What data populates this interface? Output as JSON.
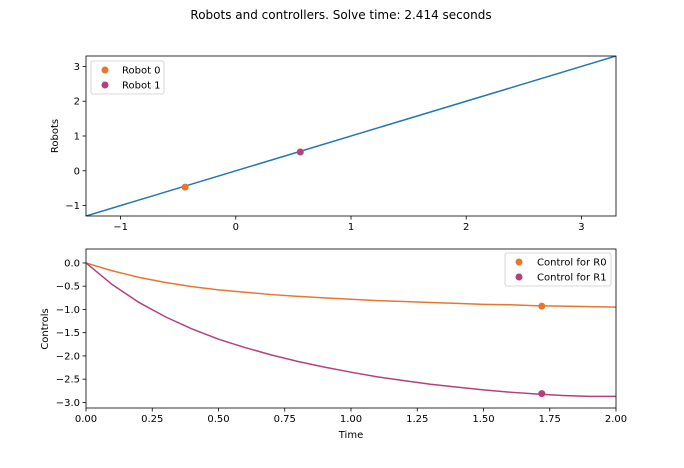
{
  "figure_title": "Robots and controllers. Solve time:  2.414 seconds",
  "colors": {
    "line_blue": "#1f77b4",
    "robot0": "#e8772e",
    "robot1": "#b5407f",
    "axes": "#000000",
    "legend_border": "#cccccc"
  },
  "chart_data": [
    {
      "id": "robots",
      "type": "scatter",
      "xlim": [
        -1.3,
        3.3
      ],
      "ylim": [
        -1.3,
        3.3
      ],
      "xticks": [
        -1,
        0,
        1,
        2,
        3
      ],
      "yticks": [
        -1,
        0,
        1,
        2,
        3
      ],
      "xtick_labels": [
        "−1",
        "0",
        "1",
        "2",
        "3"
      ],
      "ytick_labels": [
        "−1",
        "0",
        "1",
        "2",
        "3"
      ],
      "xlabel": "",
      "ylabel": "Robots",
      "grid": false,
      "legend_position": "top-left",
      "line": {
        "x": [
          -1.3,
          3.3
        ],
        "y": [
          -1.3,
          3.3
        ]
      },
      "series": [
        {
          "name": "Robot 0",
          "x": [
            -0.44
          ],
          "y": [
            -0.47
          ]
        },
        {
          "name": "Robot 1",
          "x": [
            0.56
          ],
          "y": [
            0.54
          ]
        }
      ]
    },
    {
      "id": "controls",
      "type": "line",
      "xlim": [
        0.0,
        2.0
      ],
      "ylim": [
        -3.12,
        0.3
      ],
      "xticks": [
        0.0,
        0.25,
        0.5,
        0.75,
        1.0,
        1.25,
        1.5,
        1.75,
        2.0
      ],
      "xtick_labels": [
        "0.00",
        "0.25",
        "0.50",
        "0.75",
        "1.00",
        "1.25",
        "1.50",
        "1.75",
        "2.00"
      ],
      "yticks": [
        0.0,
        -0.5,
        -1.0,
        -1.5,
        -2.0,
        -2.5,
        -3.0
      ],
      "ytick_labels": [
        "0.0",
        "−0.5",
        "−1.0",
        "−1.5",
        "−2.0",
        "−2.5",
        "−3.0"
      ],
      "xlabel": "Time",
      "ylabel": "Controls",
      "grid": false,
      "legend_position": "top-right",
      "x": [
        0.0,
        0.1,
        0.2,
        0.3,
        0.4,
        0.5,
        0.6,
        0.7,
        0.8,
        0.9,
        1.0,
        1.1,
        1.2,
        1.3,
        1.4,
        1.5,
        1.6,
        1.7,
        1.8,
        1.9,
        2.0
      ],
      "series": [
        {
          "name": "Control for R0",
          "values": [
            0.0,
            -0.17,
            -0.31,
            -0.42,
            -0.51,
            -0.58,
            -0.63,
            -0.68,
            -0.72,
            -0.75,
            -0.78,
            -0.81,
            -0.83,
            -0.85,
            -0.87,
            -0.89,
            -0.9,
            -0.92,
            -0.93,
            -0.94,
            -0.95
          ],
          "marker": {
            "x": 1.72,
            "y": -0.93
          }
        },
        {
          "name": "Control for R1",
          "values": [
            0.0,
            -0.47,
            -0.85,
            -1.16,
            -1.42,
            -1.64,
            -1.82,
            -1.98,
            -2.12,
            -2.24,
            -2.35,
            -2.45,
            -2.53,
            -2.61,
            -2.67,
            -2.73,
            -2.78,
            -2.82,
            -2.85,
            -2.87,
            -2.87
          ],
          "marker": {
            "x": 1.72,
            "y": -2.81
          }
        }
      ]
    }
  ]
}
